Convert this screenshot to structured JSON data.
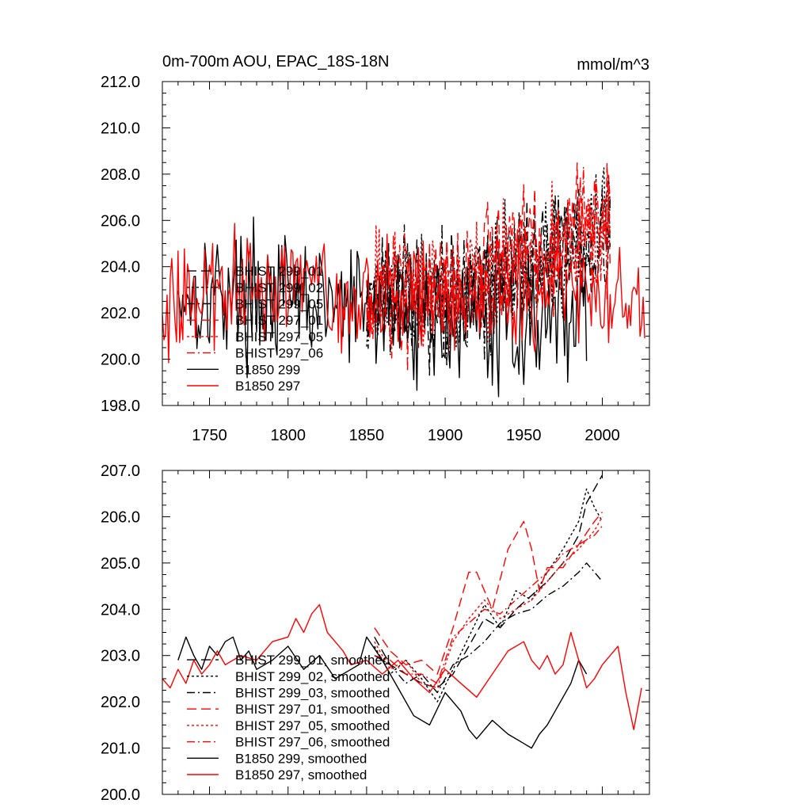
{
  "chart_data": [
    {
      "type": "line",
      "title": "0m-700m AOU, EPAC_18S-18N",
      "units": "mmol/m^3",
      "xlim": [
        1720,
        2030
      ],
      "ylim": [
        198.0,
        212.0
      ],
      "x_ticks": [
        "1750",
        "1800",
        "1850",
        "1900",
        "1950",
        "2000"
      ],
      "y_ticks": [
        "198.0",
        "200.0",
        "202.0",
        "204.0",
        "206.0",
        "208.0",
        "210.0",
        "212.0"
      ],
      "grid": false,
      "legend_position": "left",
      "series": [
        {
          "name": "BHIST 299_01",
          "color": "#000000",
          "dash": "longdash",
          "x_range": [
            1850,
            2005
          ],
          "base": [
            202.8,
            202.6,
            202.9,
            203.3,
            204.1,
            205.0,
            205.6
          ],
          "noise": 1.8,
          "seed": 11
        },
        {
          "name": "BHIST 299_02",
          "color": "#000000",
          "dash": "dot",
          "x_range": [
            1850,
            2005
          ],
          "base": [
            202.7,
            202.5,
            202.8,
            203.4,
            204.3,
            205.2,
            205.9
          ],
          "noise": 1.8,
          "seed": 12
        },
        {
          "name": "BHIST 299_05",
          "color": "#000000",
          "dash": "dashdot",
          "x_range": [
            1850,
            2005
          ],
          "base": [
            202.9,
            202.6,
            202.7,
            203.2,
            203.9,
            204.6,
            205.0
          ],
          "noise": 1.8,
          "seed": 13
        },
        {
          "name": "BHIST 297_01",
          "color": "#ff0000",
          "dash": "longdash",
          "x_range": [
            1850,
            2005
          ],
          "base": [
            202.9,
            202.8,
            203.3,
            204.0,
            204.8,
            205.4,
            205.8
          ],
          "noise": 1.8,
          "seed": 14
        },
        {
          "name": "BHIST 297_05",
          "color": "#ff0000",
          "dash": "dot",
          "x_range": [
            1850,
            2005
          ],
          "base": [
            202.8,
            202.7,
            203.0,
            203.6,
            204.3,
            205.0,
            205.9
          ],
          "noise": 1.8,
          "seed": 15
        },
        {
          "name": "BHIST 297_06",
          "color": "#ff0000",
          "dash": "dashdot",
          "x_range": [
            1850,
            2005
          ],
          "base": [
            202.8,
            202.6,
            203.0,
            203.7,
            204.4,
            205.1,
            206.0
          ],
          "noise": 1.8,
          "seed": 16
        },
        {
          "name": "B1850 299",
          "color": "#000000",
          "dash": "solid",
          "x_range": [
            1730,
            1990
          ],
          "base": [
            202.9,
            203.0,
            202.7,
            202.4,
            202.3,
            202.1,
            201.6,
            201.4,
            201.8,
            202.3
          ],
          "noise": 1.9,
          "seed": 17
        },
        {
          "name": "B1850 297",
          "color": "#ff0000",
          "dash": "solid",
          "x_range": [
            1720,
            2027
          ],
          "base": [
            202.4,
            202.9,
            203.4,
            203.1,
            202.6,
            202.7,
            202.4,
            202.9,
            202.4,
            202.8,
            202.0
          ],
          "noise": 1.6,
          "seed": 18
        }
      ]
    },
    {
      "type": "line",
      "xlim": [
        1720,
        2030
      ],
      "ylim": [
        200.0,
        207.0
      ],
      "y_ticks": [
        "200.0",
        "201.0",
        "202.0",
        "203.0",
        "204.0",
        "205.0",
        "206.0",
        "207.0"
      ],
      "grid": false,
      "legend_position": "left",
      "series": [
        {
          "name": "BHIST 299_01, smoothed",
          "color": "#000000",
          "dash": "longdash",
          "x": [
            1855,
            1865,
            1875,
            1885,
            1895,
            1905,
            1915,
            1925,
            1935,
            1945,
            1955,
            1965,
            1975,
            1985,
            1990,
            1995,
            2000
          ],
          "y": [
            203.4,
            202.8,
            202.6,
            202.4,
            202.3,
            202.6,
            203.2,
            203.8,
            203.6,
            204.0,
            204.3,
            204.6,
            205.0,
            205.6,
            206.3,
            206.6,
            206.9
          ]
        },
        {
          "name": "BHIST 299_02, smoothed",
          "color": "#000000",
          "dash": "dot",
          "x": [
            1855,
            1865,
            1875,
            1885,
            1895,
            1905,
            1915,
            1925,
            1935,
            1945,
            1955,
            1965,
            1975,
            1985,
            1990,
            1995,
            2000
          ],
          "y": [
            203.2,
            202.6,
            202.9,
            202.5,
            202.0,
            202.7,
            203.4,
            204.1,
            203.6,
            204.4,
            204.2,
            204.8,
            205.3,
            205.9,
            206.6,
            206.2,
            205.9
          ]
        },
        {
          "name": "BHIST 299_03, smoothed",
          "color": "#000000",
          "dash": "dashdot",
          "x": [
            1855,
            1865,
            1875,
            1885,
            1895,
            1905,
            1915,
            1925,
            1935,
            1945,
            1955,
            1965,
            1975,
            1985,
            1990,
            1995,
            2000
          ],
          "y": [
            203.0,
            202.8,
            202.4,
            202.6,
            202.2,
            202.8,
            203.0,
            203.3,
            203.7,
            203.9,
            204.0,
            204.3,
            204.5,
            204.8,
            205.0,
            204.8,
            204.6
          ]
        },
        {
          "name": "BHIST 297_01, smoothed",
          "color": "#ff0000",
          "dash": "longdash",
          "x": [
            1855,
            1865,
            1875,
            1885,
            1895,
            1905,
            1915,
            1920,
            1930,
            1940,
            1945,
            1950,
            1955,
            1960,
            1965,
            1975,
            1985,
            1995,
            2000
          ],
          "y": [
            203.6,
            203.1,
            202.8,
            202.9,
            202.6,
            203.6,
            204.8,
            204.8,
            204.0,
            205.3,
            205.6,
            205.9,
            205.3,
            204.4,
            204.9,
            204.9,
            205.4,
            205.9,
            206.1
          ]
        },
        {
          "name": "BHIST 297_05, smoothed",
          "color": "#ff0000",
          "dash": "dot",
          "x": [
            1855,
            1865,
            1875,
            1885,
            1895,
            1905,
            1915,
            1925,
            1935,
            1945,
            1955,
            1965,
            1975,
            1985,
            1995,
            2000
          ],
          "y": [
            203.3,
            202.7,
            202.9,
            202.4,
            202.3,
            203.3,
            203.8,
            204.2,
            203.8,
            204.0,
            204.2,
            204.6,
            205.0,
            205.3,
            205.7,
            206.0
          ]
        },
        {
          "name": "BHIST 297_06, smoothed",
          "color": "#ff0000",
          "dash": "dashdot",
          "x": [
            1855,
            1865,
            1875,
            1885,
            1895,
            1905,
            1915,
            1925,
            1935,
            1945,
            1955,
            1965,
            1975,
            1985,
            1995,
            2000
          ],
          "y": [
            203.0,
            202.9,
            202.6,
            202.6,
            202.4,
            203.4,
            203.7,
            204.0,
            203.9,
            204.2,
            204.5,
            204.8,
            205.2,
            205.4,
            205.6,
            205.8
          ]
        },
        {
          "name": "B1850 299, smoothed",
          "color": "#000000",
          "dash": "solid",
          "x": [
            1730,
            1735,
            1740,
            1745,
            1750,
            1755,
            1760,
            1765,
            1770,
            1775,
            1780,
            1790,
            1800,
            1810,
            1820,
            1830,
            1840,
            1845,
            1850,
            1860,
            1870,
            1880,
            1890,
            1900,
            1910,
            1915,
            1920,
            1930,
            1940,
            1950,
            1955,
            1960,
            1965,
            1970,
            1980,
            1985,
            1990
          ],
          "y": [
            202.9,
            203.4,
            203.0,
            202.7,
            203.2,
            203.0,
            203.3,
            203.4,
            202.9,
            203.1,
            202.7,
            202.9,
            203.2,
            202.7,
            203.0,
            202.5,
            202.7,
            202.8,
            203.4,
            202.9,
            202.3,
            201.7,
            201.5,
            202.2,
            201.8,
            201.4,
            201.2,
            201.6,
            201.3,
            201.1,
            201.0,
            201.3,
            201.5,
            201.8,
            202.4,
            202.9,
            202.6
          ]
        },
        {
          "name": "B1850 297, smoothed",
          "color": "#ff0000",
          "dash": "solid",
          "x": [
            1720,
            1725,
            1730,
            1735,
            1740,
            1745,
            1750,
            1755,
            1760,
            1770,
            1780,
            1790,
            1800,
            1805,
            1810,
            1815,
            1820,
            1825,
            1830,
            1835,
            1840,
            1850,
            1860,
            1870,
            1880,
            1890,
            1900,
            1910,
            1920,
            1930,
            1940,
            1950,
            1955,
            1960,
            1965,
            1970,
            1975,
            1980,
            1985,
            1990,
            1995,
            2000,
            2005,
            2010,
            2015,
            2020,
            2025
          ],
          "y": [
            202.5,
            202.3,
            202.7,
            202.4,
            202.9,
            202.6,
            202.8,
            203.1,
            202.8,
            203.0,
            202.9,
            203.3,
            203.4,
            203.8,
            203.5,
            203.9,
            204.1,
            203.5,
            203.3,
            203.1,
            202.8,
            202.9,
            202.6,
            202.9,
            202.5,
            202.2,
            202.7,
            202.4,
            202.1,
            202.6,
            203.1,
            203.3,
            202.9,
            202.7,
            203.0,
            202.6,
            202.8,
            203.5,
            202.9,
            202.3,
            202.5,
            202.8,
            203.0,
            203.2,
            202.2,
            201.4,
            202.3
          ]
        }
      ]
    }
  ]
}
